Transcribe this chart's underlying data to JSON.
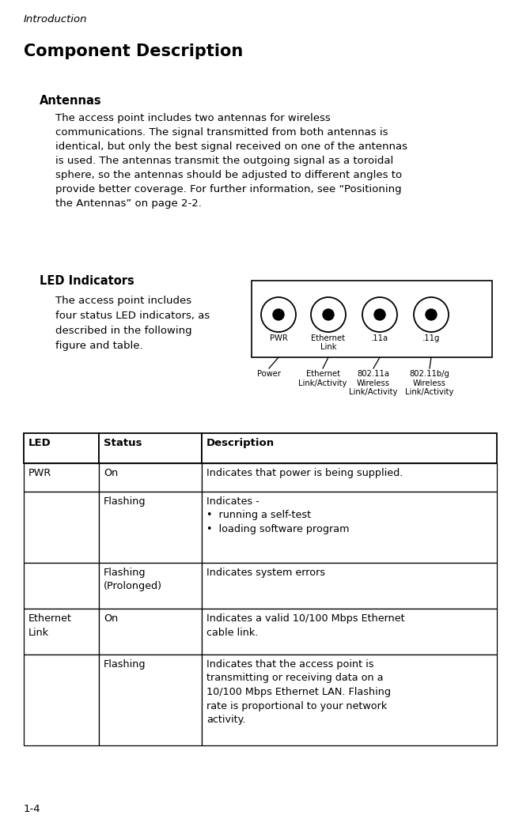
{
  "bg_color": "#ffffff",
  "page_number": "1-4",
  "header_italic": "Introduction",
  "section_title": "Component Description",
  "subsection1": "Antennas",
  "antennas_body": "The access point includes two antennas for wireless\ncommunications. The signal transmitted from both antennas is\nidentical, but only the best signal received on one of the antennas\nis used. The antennas transmit the outgoing signal as a toroidal\nsphere, so the antennas should be adjusted to different angles to\nprovide better coverage. For further information, see “Positioning\nthe Antennas” on page 2-2.",
  "subsection2": "LED Indicators",
  "led_body": "The access point includes\nfour status LED indicators, as\ndescribed in the following\nfigure and table.",
  "led_labels_top": [
    "PWR",
    "Ethernet\nLink",
    ".11a",
    ".11g"
  ],
  "led_labels_bottom": [
    "Power",
    "Ethernet\nLink/Activity",
    "802.11a\nWireless\nLink/Activity",
    "802.11b/g\nWireless\nLink/Activity"
  ],
  "table_header": [
    "LED",
    "Status",
    "Description"
  ],
  "table_rows": [
    [
      "PWR",
      "On",
      "Indicates that power is being supplied."
    ],
    [
      "",
      "Flashing",
      "Indicates -\n•  running a self-test\n•  loading software program"
    ],
    [
      "",
      "Flashing\n(Prolonged)",
      "Indicates system errors"
    ],
    [
      "Ethernet\nLink",
      "On",
      "Indicates a valid 10/100 Mbps Ethernet\ncable link."
    ],
    [
      "",
      "Flashing",
      "Indicates that the access point is\ntransmitting or receiving data on a\n10/100 Mbps Ethernet LAN. Flashing\nrate is proportional to your network\nactivity."
    ]
  ]
}
